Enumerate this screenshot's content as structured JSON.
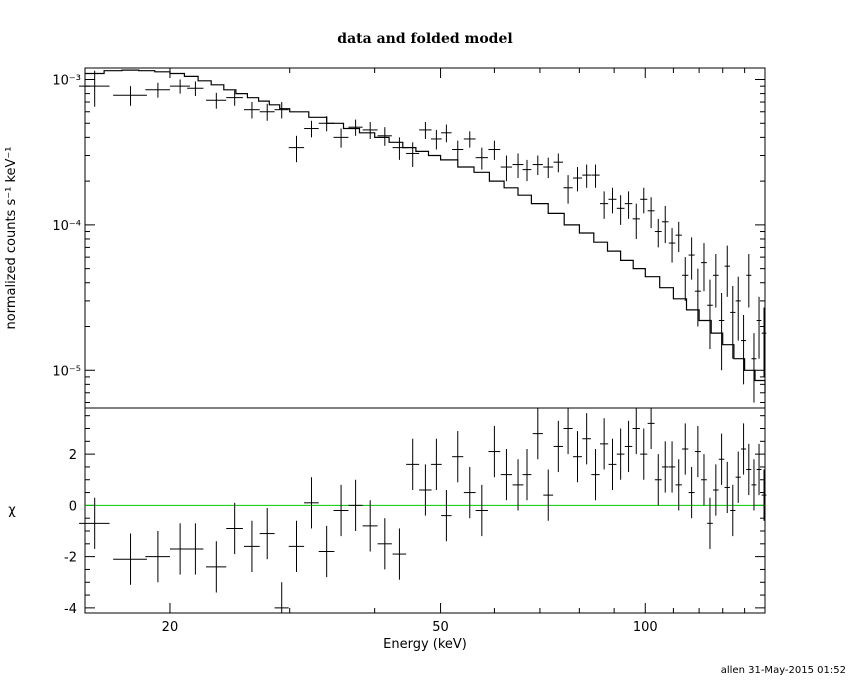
{
  "chart_data": {
    "type": "scatter",
    "title": "data and folded model",
    "xlabel": "Energy (keV)",
    "footer": "allen 31-May-2015 01:52",
    "x_scale": "log",
    "xlim": [
      15,
      150
    ],
    "x_ticks": [
      20,
      50,
      100
    ],
    "upper": {
      "ylabel": "normalized counts s⁻¹ keV⁻¹",
      "y_scale": "log",
      "ylim": [
        5.5e-06,
        0.0012
      ],
      "y_ticks": [
        {
          "value": 0.001,
          "label": "10⁻³"
        },
        {
          "value": 0.0001,
          "label": "10⁻⁴"
        },
        {
          "value": 1e-05,
          "label": "10⁻⁵"
        }
      ],
      "data_series": {
        "name": "data",
        "x": [
          15.5,
          17.5,
          19.2,
          20.7,
          21.8,
          23.4,
          24.9,
          26.4,
          27.8,
          29.2,
          30.7,
          32.3,
          34.0,
          35.7,
          37.5,
          39.4,
          41.4,
          43.5,
          45.5,
          47.5,
          49.3,
          51.0,
          53.0,
          55.2,
          57.5,
          60.0,
          62.5,
          65.0,
          67.0,
          69.5,
          72.0,
          74.5,
          77.0,
          79.5,
          82.0,
          84.5,
          87.0,
          89.5,
          92.0,
          94.5,
          97.0,
          99.5,
          102.0,
          104.5,
          107.0,
          109.5,
          112.0,
          114.5,
          117.0,
          119.5,
          122.0,
          124.5,
          127.0,
          129.5,
          132.0,
          134.5,
          137.0,
          139.5,
          142.0,
          144.5,
          147.0,
          149.5
        ],
        "xerr": [
          0.8,
          1.0,
          0.8,
          0.7,
          0.6,
          0.8,
          0.7,
          0.7,
          0.7,
          0.7,
          0.8,
          0.8,
          0.9,
          0.9,
          0.9,
          1.0,
          1.0,
          1.0,
          1.0,
          1.0,
          0.9,
          0.9,
          1.0,
          1.1,
          1.2,
          1.2,
          1.2,
          1.2,
          1.0,
          1.2,
          1.2,
          1.2,
          1.2,
          1.2,
          1.2,
          1.2,
          1.2,
          1.2,
          1.2,
          1.2,
          1.2,
          1.2,
          1.2,
          1.2,
          1.2,
          1.2,
          1.2,
          1.2,
          1.2,
          1.2,
          1.2,
          1.2,
          1.2,
          1.2,
          1.2,
          1.2,
          1.2,
          1.2,
          1.2,
          1.2,
          1.2,
          1.2
        ],
        "y": [
          0.0009,
          0.00078,
          0.00085,
          0.0009,
          0.00087,
          0.00072,
          0.00075,
          0.00062,
          0.0006,
          0.00062,
          0.00034,
          0.00046,
          0.0005,
          0.0004,
          0.00047,
          0.00045,
          0.00041,
          0.00034,
          0.00031,
          0.00045,
          0.00039,
          0.00043,
          0.00033,
          0.00039,
          0.00029,
          0.00033,
          0.00025,
          0.00026,
          0.00024,
          0.00026,
          0.00025,
          0.00027,
          0.00018,
          0.00021,
          0.00022,
          0.00022,
          0.00014,
          0.00015,
          0.00013,
          0.00014,
          0.00011,
          0.00015,
          0.000125,
          9e-05,
          0.000105,
          7.5e-05,
          8.5e-05,
          4.5e-05,
          6.2e-05,
          3.5e-05,
          5.5e-05,
          2.8e-05,
          4.5e-05,
          2.2e-05,
          5.2e-05,
          2.5e-05,
          3e-05,
          1.6e-05,
          4.5e-05,
          1.2e-05,
          2.2e-05,
          1.8e-05
        ],
        "yerr": [
          0.00025,
          0.00012,
          0.0001,
          0.0001,
          0.0001,
          9e-05,
          9e-05,
          8e-05,
          8e-05,
          8e-05,
          7e-05,
          6e-05,
          6e-05,
          6e-05,
          6e-05,
          6e-05,
          6e-05,
          6e-05,
          6e-05,
          6e-05,
          6e-05,
          6e-05,
          5e-05,
          5e-05,
          5e-05,
          5e-05,
          5e-05,
          5e-05,
          4e-05,
          4e-05,
          4e-05,
          4e-05,
          4e-05,
          4e-05,
          4e-05,
          4e-05,
          3e-05,
          3e-05,
          3e-05,
          3e-05,
          3e-05,
          3e-05,
          3e-05,
          2e-05,
          3e-05,
          2e-05,
          2e-05,
          1.5e-05,
          2e-05,
          1.5e-05,
          2e-05,
          1.4e-05,
          1.8e-05,
          1.2e-05,
          2e-05,
          1.3e-05,
          1.4e-05,
          8e-06,
          1.8e-05,
          6e-06,
          1e-05,
          9e-06
        ]
      },
      "model_series": {
        "name": "model",
        "x": [
          15,
          16,
          17,
          18,
          19,
          20,
          21,
          22,
          23,
          24,
          25,
          26,
          27,
          28,
          29,
          30,
          32,
          34,
          36,
          38,
          40,
          42,
          44,
          46,
          48,
          50,
          53,
          56,
          59,
          62,
          65,
          68,
          72,
          76,
          80,
          84,
          88,
          92,
          96,
          100,
          105,
          110,
          115,
          120,
          125,
          130,
          135,
          140,
          145,
          150
        ],
        "y": [
          0.0011,
          0.00115,
          0.00116,
          0.00115,
          0.00113,
          0.0011,
          0.00105,
          0.00098,
          0.00092,
          0.00085,
          0.0008,
          0.00075,
          0.00071,
          0.00067,
          0.00063,
          0.0006,
          0.00055,
          0.0005,
          0.00046,
          0.00043,
          0.0004,
          0.00037,
          0.00034,
          0.00032,
          0.0003,
          0.00028,
          0.00025,
          0.00023,
          0.0002,
          0.00018,
          0.00016,
          0.00014,
          0.00012,
          0.0001,
          8.8e-05,
          7.6e-05,
          6.6e-05,
          5.7e-05,
          5e-05,
          4.4e-05,
          3.7e-05,
          3.1e-05,
          2.6e-05,
          2.2e-05,
          1.8e-05,
          1.5e-05,
          1.2e-05,
          1e-05,
          8.5e-06,
          7e-06
        ]
      }
    },
    "lower": {
      "ylabel": "χ",
      "ylim": [
        -4.2,
        3.8
      ],
      "y_ticks": [
        -4,
        -2,
        0,
        2
      ],
      "zero_line_color": "#00cc00",
      "residuals": {
        "name": "residuals",
        "x": [
          15.5,
          17.5,
          19.2,
          20.7,
          21.8,
          23.4,
          24.9,
          26.4,
          27.8,
          29.2,
          30.7,
          32.3,
          34.0,
          35.7,
          37.5,
          39.4,
          41.4,
          43.5,
          45.5,
          47.5,
          49.3,
          51.0,
          53.0,
          55.2,
          57.5,
          60.0,
          62.5,
          65.0,
          67.0,
          69.5,
          72.0,
          74.5,
          77.0,
          79.5,
          82.0,
          84.5,
          87.0,
          89.5,
          92.0,
          94.5,
          97.0,
          99.5,
          102.0,
          104.5,
          107.0,
          109.5,
          112.0,
          114.5,
          117.0,
          119.5,
          122.0,
          124.5,
          127.0,
          129.5,
          132.0,
          134.5,
          137.0,
          139.5,
          142.0,
          144.5,
          147.0,
          149.5
        ],
        "xerr": [
          0.8,
          1.0,
          0.8,
          0.7,
          0.6,
          0.8,
          0.7,
          0.7,
          0.7,
          0.7,
          0.8,
          0.8,
          0.9,
          0.9,
          0.9,
          1.0,
          1.0,
          1.0,
          1.0,
          1.0,
          0.9,
          0.9,
          1.0,
          1.1,
          1.2,
          1.2,
          1.2,
          1.2,
          1.0,
          1.2,
          1.2,
          1.2,
          1.2,
          1.2,
          1.2,
          1.2,
          1.2,
          1.2,
          1.2,
          1.2,
          1.2,
          1.2,
          1.2,
          1.2,
          1.2,
          1.2,
          1.2,
          1.2,
          1.2,
          1.2,
          1.2,
          1.2,
          1.2,
          1.2,
          1.2,
          1.2,
          1.2,
          1.2,
          1.2,
          1.2,
          1.2,
          1.2
        ],
        "y": [
          -0.7,
          -2.1,
          -2.0,
          -1.7,
          -1.7,
          -2.4,
          -0.9,
          -1.6,
          -1.1,
          -4.0,
          -1.6,
          0.1,
          -1.8,
          -0.2,
          0.0,
          -0.8,
          -1.5,
          -1.9,
          1.6,
          0.6,
          1.6,
          -0.4,
          1.9,
          0.5,
          -0.2,
          2.1,
          1.2,
          0.8,
          1.2,
          2.8,
          0.4,
          2.3,
          3.0,
          1.9,
          2.6,
          1.2,
          2.4,
          1.6,
          2.0,
          2.3,
          3.0,
          2.0,
          3.2,
          1.0,
          1.5,
          1.5,
          0.8,
          2.2,
          0.5,
          2.1,
          1.0,
          -0.7,
          0.6,
          1.8,
          0.7,
          -0.2,
          1.1,
          2.2,
          1.4,
          0.8,
          1.4,
          0.4
        ],
        "yerr": [
          1.0,
          1.0,
          1.0,
          1.0,
          1.0,
          1.0,
          1.0,
          1.0,
          1.0,
          1.0,
          1.0,
          1.0,
          1.0,
          1.0,
          1.0,
          1.0,
          1.0,
          1.0,
          1.0,
          1.0,
          1.0,
          1.0,
          1.0,
          1.0,
          1.0,
          1.0,
          1.0,
          1.0,
          1.0,
          1.0,
          1.0,
          1.0,
          1.0,
          1.0,
          1.0,
          1.0,
          1.0,
          1.0,
          1.0,
          1.0,
          1.0,
          1.0,
          1.0,
          1.0,
          1.0,
          1.0,
          1.0,
          1.0,
          1.0,
          1.0,
          1.0,
          1.0,
          1.0,
          1.0,
          1.0,
          1.0,
          1.0,
          1.0,
          1.0,
          1.0,
          1.0,
          1.0
        ]
      }
    }
  }
}
